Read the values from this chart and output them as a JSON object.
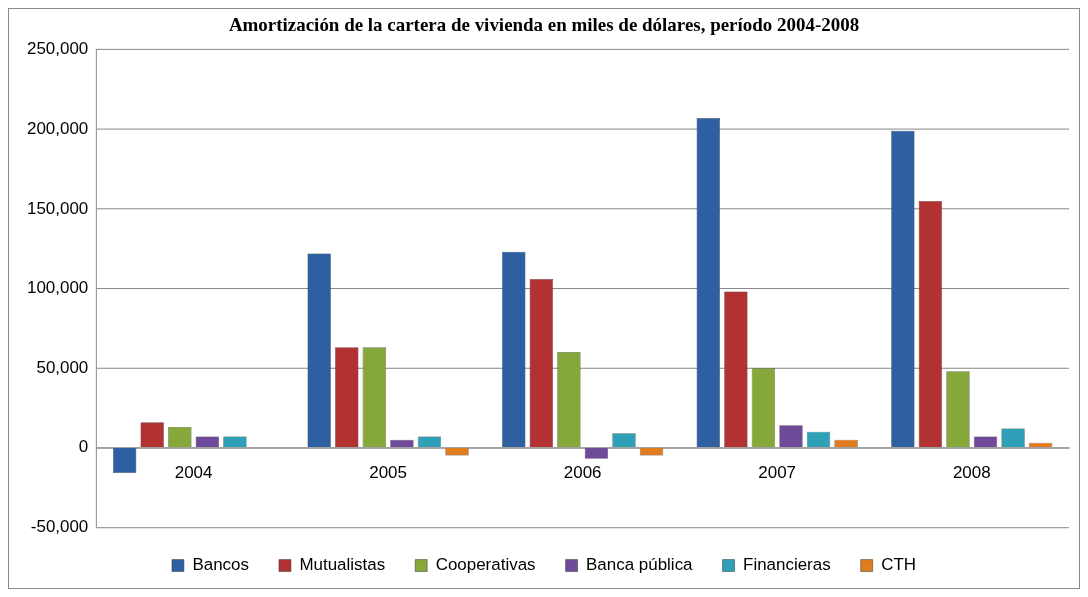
{
  "chart_data": {
    "type": "bar",
    "title": "Amortización de la cartera de vivienda en miles de dólares, período 2004-2008",
    "categories": [
      "2004",
      "2005",
      "2006",
      "2007",
      "2008"
    ],
    "series": [
      {
        "name": "Bancos",
        "color": "#2e5fa0",
        "values": [
          -16000,
          122000,
          123000,
          207000,
          199000
        ]
      },
      {
        "name": "Mutualistas",
        "color": "#b23232",
        "values": [
          16000,
          63000,
          106000,
          98000,
          155000
        ]
      },
      {
        "name": "Cooperativas",
        "color": "#86a83a",
        "values": [
          13000,
          63000,
          60000,
          50000,
          48000
        ]
      },
      {
        "name": "Banca pública",
        "color": "#6e4a98",
        "values": [
          7000,
          5000,
          -7000,
          14000,
          7000
        ]
      },
      {
        "name": "Financieras",
        "color": "#2fa0b8",
        "values": [
          7000,
          7000,
          9000,
          10000,
          12000
        ]
      },
      {
        "name": "CTH",
        "color": "#e07c20",
        "values": [
          null,
          -5000,
          -5000,
          5000,
          3000
        ]
      }
    ],
    "ylim": [
      -50000,
      250000
    ],
    "yticks": [
      {
        "value": -50000,
        "label": "-50,000"
      },
      {
        "value": 0,
        "label": "0"
      },
      {
        "value": 50000,
        "label": "50,000"
      },
      {
        "value": 100000,
        "label": "100,000"
      },
      {
        "value": 150000,
        "label": "150,000"
      },
      {
        "value": 200000,
        "label": "200,000"
      },
      {
        "value": 250000,
        "label": "250,000"
      }
    ],
    "grid": "y",
    "legend": "bottom"
  }
}
